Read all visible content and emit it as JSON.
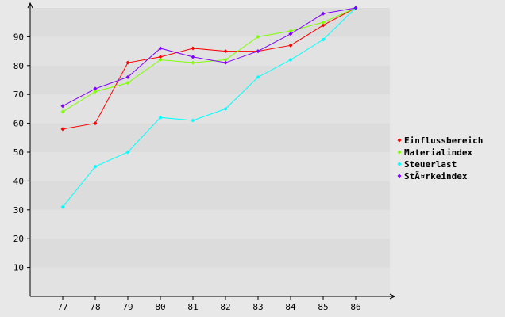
{
  "chart_data": {
    "type": "line",
    "title": "",
    "xlabel": "",
    "ylabel": "",
    "categories": [
      "77",
      "78",
      "79",
      "80",
      "81",
      "82",
      "83",
      "84",
      "85",
      "86"
    ],
    "ylim": [
      0,
      100
    ],
    "yticks": [
      10,
      20,
      30,
      40,
      50,
      60,
      70,
      80,
      90
    ],
    "grid": "alternating horizontal bands",
    "legend_position": "right",
    "series": [
      {
        "name": "Einflussbereich",
        "color": "#ff0000",
        "values": [
          58,
          60,
          81,
          83,
          86,
          85,
          85,
          87,
          94,
          100
        ]
      },
      {
        "name": "Materialindex",
        "color": "#7fff00",
        "values": [
          64,
          71,
          74,
          82,
          81,
          82,
          90,
          92,
          95,
          100
        ]
      },
      {
        "name": "Steuerlast",
        "color": "#00ffff",
        "values": [
          31,
          45,
          50,
          62,
          61,
          65,
          76,
          82,
          89,
          100
        ]
      },
      {
        "name": "StÃ¤rkeindex",
        "color": "#8000ff",
        "values": [
          66,
          72,
          76,
          86,
          83,
          81,
          85,
          91,
          98,
          100
        ]
      }
    ]
  }
}
